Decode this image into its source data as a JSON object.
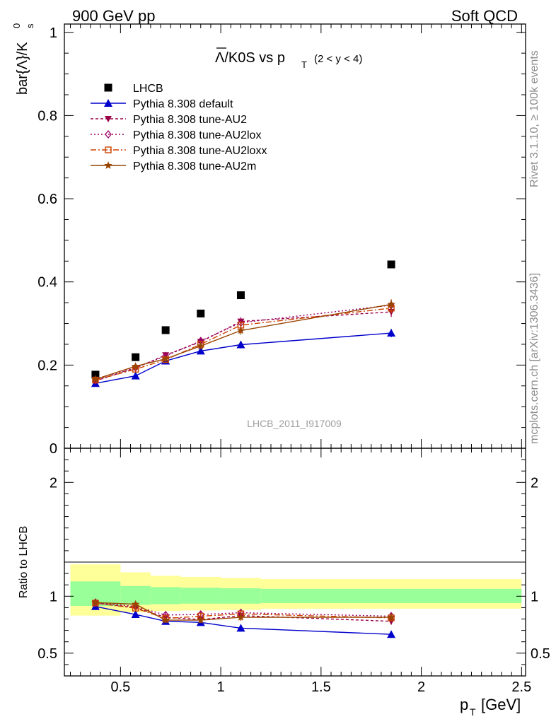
{
  "header": {
    "left": "900 GeV pp",
    "right": "Soft QCD"
  },
  "side_labels": {
    "rivet": "Rivet 3.1.10, ≥ 100k events",
    "mcplots": "mcplots.cern.ch [arXiv:1306.3436]"
  },
  "watermark": "LHCB_2011_I917009",
  "colors": {
    "data": "#000000",
    "default": "#0000cc",
    "au2": "#990044",
    "au2lox": "#990066",
    "au2loxx": "#cc4400",
    "au2m": "#994400",
    "band_inner": "#99ff99",
    "band_outer": "#ffff99"
  },
  "chart_data": [
    {
      "id": "main",
      "type": "line",
      "title_main": "Λ/K0S vs p",
      "title_overline_char": "Λ",
      "title_sub": "T",
      "title_range": "(2 < y < 4)",
      "ylabel_main": "bar{Λ}/K",
      "ylabel_sub": "s",
      "ylabel_sup": "0",
      "xlim": [
        0.22,
        2.52
      ],
      "ylim": [
        0,
        1.02
      ],
      "yticks": [
        0,
        0.2,
        0.4,
        0.6,
        0.8,
        1
      ],
      "yticklabels": [
        "0",
        "0.2",
        "0.4",
        "0.6",
        "0.8",
        "1"
      ],
      "x": [
        0.375,
        0.575,
        0.725,
        0.9,
        1.1,
        1.85
      ],
      "series": [
        {
          "key": "data",
          "name": "LHCB",
          "marker": "square",
          "dash": "none",
          "values": [
            0.177,
            0.219,
            0.284,
            0.324,
            0.368,
            0.442
          ],
          "errors": [
            0.003,
            0.003,
            0.003,
            0.003,
            0.004,
            0.004
          ]
        },
        {
          "key": "default",
          "name": "Pythia 8.308 default",
          "marker": "triangle-up",
          "dash": "none",
          "values": [
            0.156,
            0.174,
            0.21,
            0.234,
            0.249,
            0.277
          ],
          "errors": [
            0.003,
            0.004,
            0.005,
            0.005,
            0.009,
            0.01
          ]
        },
        {
          "key": "au2",
          "name": "Pythia 8.308 tune-AU2",
          "marker": "triangle-down",
          "dash": "4,3",
          "values": [
            0.162,
            0.193,
            0.224,
            0.256,
            0.305,
            0.328
          ],
          "errors": [
            0.003,
            0.005,
            0.006,
            0.008,
            0.01,
            0.012
          ]
        },
        {
          "key": "au2lox",
          "name": "Pythia 8.308 tune-AU2lox",
          "marker": "diamond",
          "dash": "2,3",
          "values": [
            0.163,
            0.194,
            0.222,
            0.258,
            0.302,
            0.344
          ],
          "errors": [
            0.003,
            0.005,
            0.006,
            0.008,
            0.01,
            0.012
          ]
        },
        {
          "key": "au2loxx",
          "name": "Pythia 8.308 tune-AU2loxx",
          "marker": "square-open",
          "dash": "8,3,2,3",
          "values": [
            0.164,
            0.19,
            0.213,
            0.25,
            0.296,
            0.337
          ],
          "errors": [
            0.003,
            0.005,
            0.006,
            0.008,
            0.01,
            0.012
          ]
        },
        {
          "key": "au2m",
          "name": "Pythia 8.308 tune-AU2m",
          "marker": "star",
          "dash": "none",
          "values": [
            0.166,
            0.197,
            0.215,
            0.246,
            0.283,
            0.346
          ],
          "errors": [
            0.003,
            0.005,
            0.006,
            0.008,
            0.01,
            0.012
          ]
        }
      ]
    },
    {
      "id": "ratio",
      "type": "line",
      "ylabel": "Ratio to LHCB",
      "xlabel_main": "p",
      "xlabel_sub": "T",
      "xlabel_unit": "[GeV]",
      "xlim": [
        0.22,
        2.52
      ],
      "ylim": [
        0.3,
        2.3
      ],
      "yticks": [
        0.5,
        1,
        2
      ],
      "yticklabels": [
        "0.5",
        "1",
        "2"
      ],
      "xticks": [
        0.5,
        1,
        1.5,
        2,
        2.5
      ],
      "xticklabels": [
        "0.5",
        "1",
        "1.5",
        "2",
        "2.5"
      ],
      "bins": [
        0.25,
        0.5,
        0.65,
        0.8,
        1.0,
        1.2,
        2.5
      ],
      "band_inner": [
        [
          0.915,
          1.13
        ],
        [
          0.925,
          1.09
        ],
        [
          0.93,
          1.08
        ],
        [
          0.935,
          1.075
        ],
        [
          0.935,
          1.07
        ],
        [
          0.94,
          1.065
        ]
      ],
      "band_outer": [
        [
          0.83,
          1.28
        ],
        [
          0.86,
          1.21
        ],
        [
          0.87,
          1.18
        ],
        [
          0.875,
          1.17
        ],
        [
          0.88,
          1.16
        ],
        [
          0.89,
          1.15
        ]
      ],
      "x": [
        0.375,
        0.575,
        0.725,
        0.9,
        1.1,
        1.85
      ],
      "series": [
        {
          "key": "default",
          "values": [
            0.91,
            0.84,
            0.78,
            0.77,
            0.72,
            0.665
          ],
          "errors": [
            0.015,
            0.02,
            0.02,
            0.02,
            0.03,
            0.025
          ]
        },
        {
          "key": "au2",
          "values": [
            0.94,
            0.9,
            0.815,
            0.795,
            0.83,
            0.78
          ],
          "errors": [
            0.015,
            0.025,
            0.025,
            0.025,
            0.03,
            0.03
          ]
        },
        {
          "key": "au2lox",
          "values": [
            0.945,
            0.91,
            0.835,
            0.84,
            0.855,
            0.825
          ],
          "errors": [
            0.015,
            0.025,
            0.025,
            0.025,
            0.03,
            0.03
          ]
        },
        {
          "key": "au2loxx",
          "values": [
            0.94,
            0.895,
            0.805,
            0.825,
            0.845,
            0.81
          ],
          "errors": [
            0.015,
            0.025,
            0.025,
            0.025,
            0.03,
            0.03
          ]
        },
        {
          "key": "au2m",
          "values": [
            0.945,
            0.93,
            0.79,
            0.79,
            0.815,
            0.815
          ],
          "errors": [
            0.015,
            0.025,
            0.025,
            0.025,
            0.03,
            0.03
          ]
        }
      ]
    }
  ]
}
